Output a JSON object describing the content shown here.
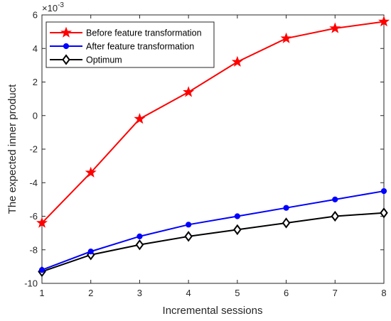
{
  "chart_data": {
    "type": "line",
    "xlabel": "Incremental sessions",
    "ylabel": "The expected inner product",
    "y_multiplier": "×10",
    "y_exponent": "-3",
    "x": [
      1,
      2,
      3,
      4,
      5,
      6,
      7,
      8
    ],
    "xlim": [
      1,
      8
    ],
    "ylim": [
      -10,
      6
    ],
    "x_ticks": [
      "1",
      "2",
      "3",
      "4",
      "5",
      "6",
      "7",
      "8"
    ],
    "y_ticks": [
      "-10",
      "-8",
      "-6",
      "-4",
      "-2",
      "0",
      "2",
      "4",
      "6"
    ],
    "grid": false,
    "legend_position": "top-left",
    "series": [
      {
        "name": "Before feature transformation",
        "color": "#ff0000",
        "marker": "star",
        "values": [
          -6.4,
          -3.4,
          -0.2,
          1.4,
          3.2,
          4.6,
          5.2,
          5.6
        ]
      },
      {
        "name": "After feature transformation",
        "color": "#0000ff",
        "marker": "filled-circle",
        "values": [
          -9.2,
          -8.1,
          -7.2,
          -6.5,
          -6.0,
          -5.5,
          -5.0,
          -4.5
        ]
      },
      {
        "name": "Optimum",
        "color": "#000000",
        "marker": "open-diamond",
        "values": [
          -9.3,
          -8.3,
          -7.7,
          -7.2,
          -6.8,
          -6.4,
          -6.0,
          -5.8
        ]
      }
    ]
  }
}
